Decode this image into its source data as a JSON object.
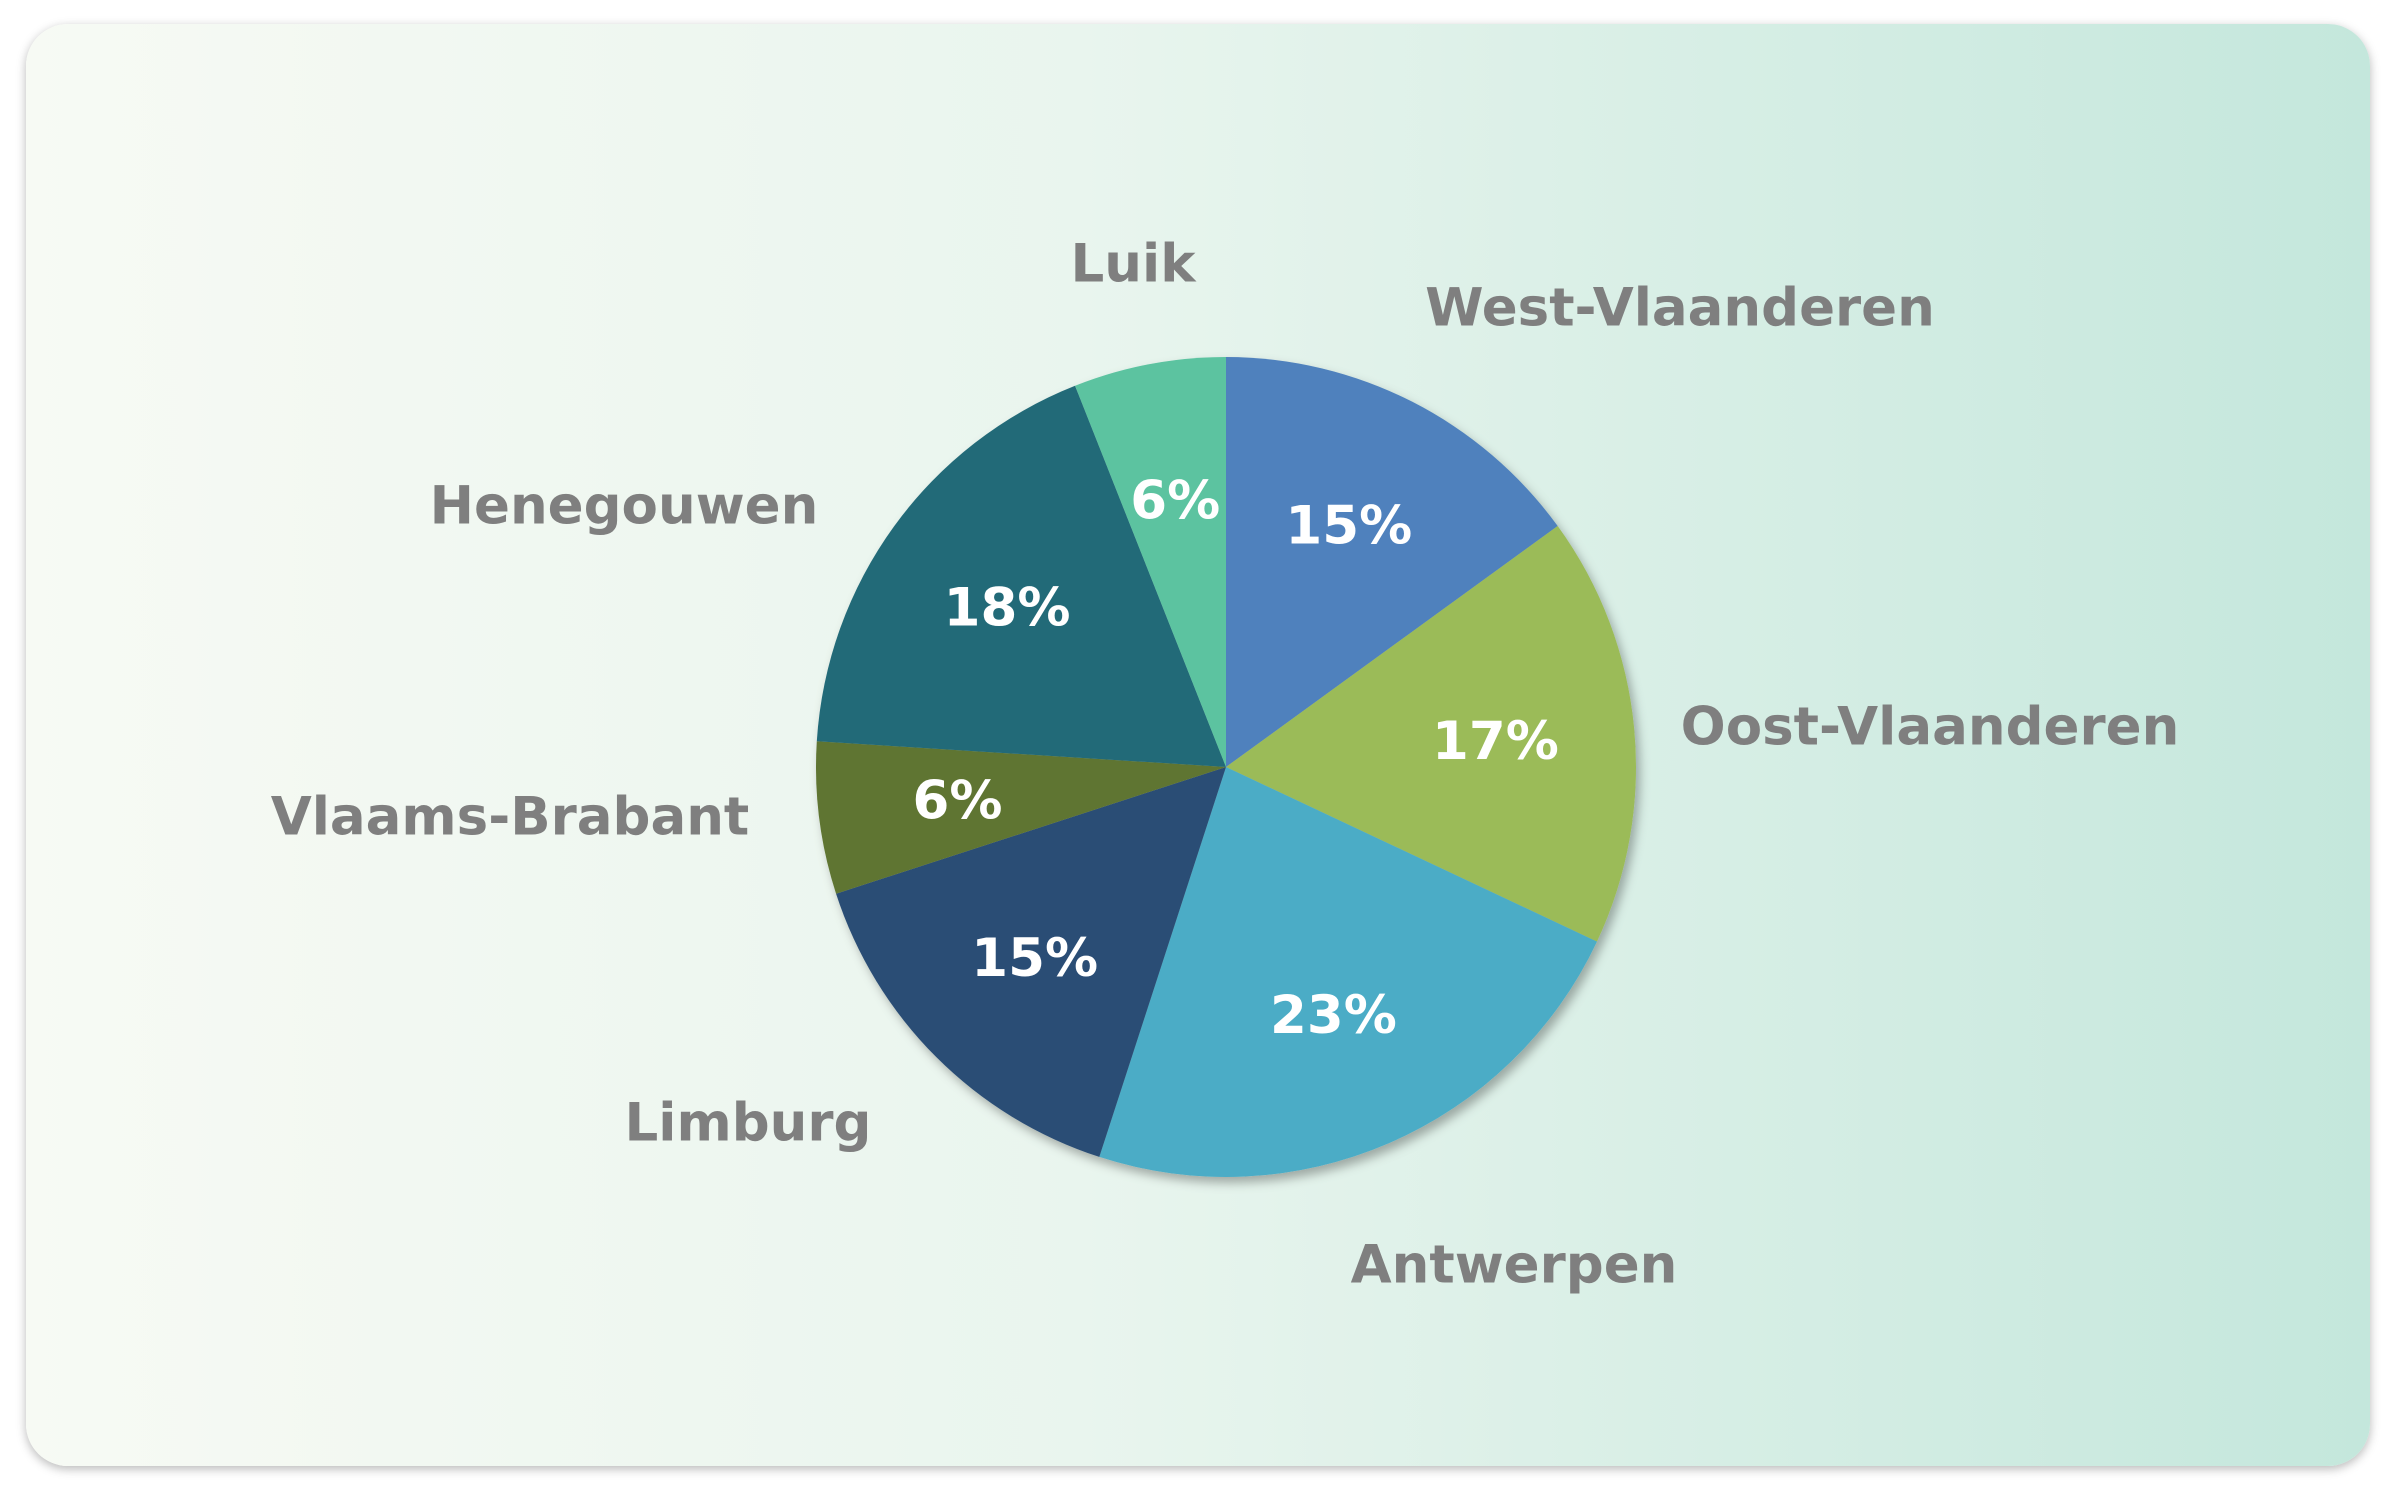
{
  "chart_data": {
    "type": "pie",
    "title": "",
    "slices": [
      {
        "label": "West-Vlaanderen",
        "value": 15,
        "value_label": "15%",
        "color": "#4f81bd"
      },
      {
        "label": "Oost-Vlaanderen",
        "value": 17,
        "value_label": "17%",
        "color": "#9bbb59"
      },
      {
        "label": "Antwerpen",
        "value": 23,
        "value_label": "23%",
        "color": "#4bacc6"
      },
      {
        "label": "Limburg",
        "value": 15,
        "value_label": "15%",
        "color": "#2c4d75"
      },
      {
        "label": "Vlaams-Brabant",
        "value": 6,
        "value_label": "6%",
        "color": "#5f7530"
      },
      {
        "label": "Henegouwen",
        "value": 18,
        "value_label": "18%",
        "color": "#236a78"
      },
      {
        "label": "Luik",
        "value": 6,
        "value_label": "6%",
        "color": "#5bc3a0"
      }
    ],
    "start_angle": "top",
    "direction": "clockwise",
    "legend": "none",
    "category_label_color": "#7f7f7f",
    "value_label_color": "#ffffff"
  }
}
